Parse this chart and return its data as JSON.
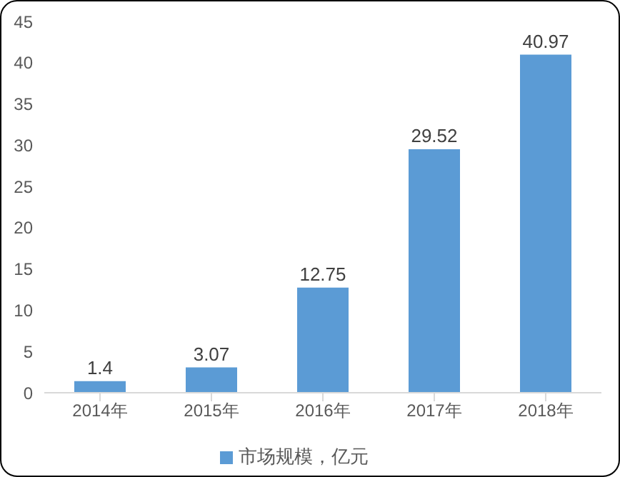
{
  "chart_data": {
    "type": "bar",
    "categories": [
      "2014年",
      "2015年",
      "2016年",
      "2017年",
      "2018年"
    ],
    "series": [
      {
        "name": "市场规模，亿元",
        "color": "#5b9bd5",
        "values": [
          1.4,
          3.07,
          12.75,
          29.52,
          40.97
        ]
      }
    ],
    "ylim": [
      0,
      45
    ],
    "yticks": [
      0,
      5,
      10,
      15,
      20,
      25,
      30,
      35,
      40,
      45
    ],
    "grid": false,
    "legend": "bottom",
    "data_labels": true
  }
}
